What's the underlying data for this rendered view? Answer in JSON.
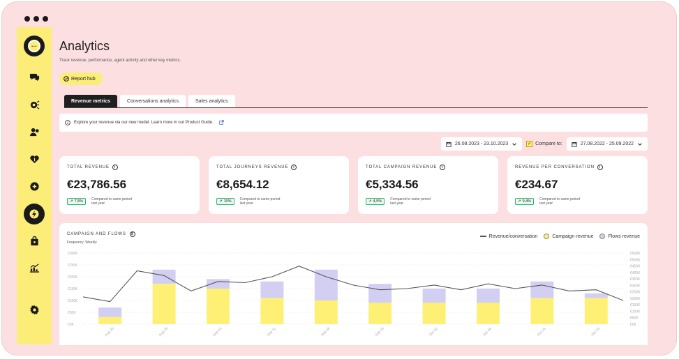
{
  "page": {
    "title": "Analytics",
    "subtitle": "Track revenue, performance, agent activity and other key metrics.",
    "report_hub": "Report hub"
  },
  "tabs": [
    {
      "label": "Revenue metrics",
      "active": true
    },
    {
      "label": "Conversations analytics",
      "active": false
    },
    {
      "label": "Sales analytics",
      "active": false
    }
  ],
  "info_bar": {
    "text": "Explore your revenue via our new model. Learn more in our Product Guide."
  },
  "filters": {
    "date_range": "26.08.2023 - 23.10.2023",
    "compare_label": "Compare to:",
    "compare_range": "27.08.2022 - 25.09.2022"
  },
  "kpis": [
    {
      "label": "TOTAL REVENUE",
      "value": "€23,786.56",
      "change": "7,5%",
      "compare": "Compared to same period last year"
    },
    {
      "label": "TOTAL JOURNEYS REVENUE",
      "value": "€8,654.12",
      "change": "10%",
      "compare": "Compared to same period last year"
    },
    {
      "label": "TOTAL CAMPAIGN REVENUE",
      "value": "€5,334.56",
      "change": "4,5%",
      "compare": "Compared to same period last year"
    },
    {
      "label": "REVENUE PER CONVERSATION",
      "value": "€234.67",
      "change": "9,4%",
      "compare": "Compared to same period last year"
    }
  ],
  "chart": {
    "title": "CAMPAIGN AND FLOWS",
    "frequency": "Frequency: Weekly",
    "legend": [
      "Revenue/conversation",
      "Campaign revenue",
      "Flows revenue"
    ]
  },
  "colors": {
    "campaign": "#fdf074",
    "flows": "#d3cff2",
    "line": "#555555",
    "accent": "#fbed77"
  },
  "chart_data": {
    "type": "bar",
    "title": "CAMPAIGN AND FLOWS",
    "categories": [
      "Aug 26",
      "Aug 29",
      "Sep 04",
      "Sep 11",
      "Sep 18",
      "Sep 25",
      "Oct 02",
      "Oct 09",
      "Oct 16",
      "Oct 23"
    ],
    "series": [
      {
        "name": "Campaign revenue",
        "values": [
          30,
          170,
          150,
          110,
          100,
          90,
          90,
          90,
          110,
          110
        ]
      },
      {
        "name": "Flows revenue",
        "values": [
          40,
          60,
          40,
          70,
          130,
          80,
          60,
          60,
          70,
          20
        ]
      }
    ],
    "line_series": {
      "name": "Revenue/conversation",
      "x": [
        0,
        0.5,
        1,
        1.5,
        2,
        2.5,
        3,
        3.5,
        4,
        4.5,
        5,
        5.5,
        6,
        6.5,
        7,
        7.5,
        8,
        8.5,
        9,
        9.5,
        10
      ],
      "values": [
        230,
        190,
        450,
        410,
        280,
        360,
        350,
        400,
        490,
        400,
        330,
        290,
        300,
        330,
        290,
        340,
        300,
        330,
        280,
        290,
        200
      ]
    },
    "y_left_ticks": [
      "€0K",
      "€50K",
      "€100K",
      "€150K",
      "€200K",
      "€250K",
      "€300K"
    ],
    "y_right_ticks": [
      "€0K",
      "€50K",
      "€100K",
      "€150K",
      "€200K",
      "€250K",
      "€300K",
      "€350K",
      "€400K",
      "€450K",
      "€500K",
      "€600K"
    ],
    "ylim_left": [
      0,
      300
    ],
    "ylim_right": [
      0,
      600
    ]
  }
}
